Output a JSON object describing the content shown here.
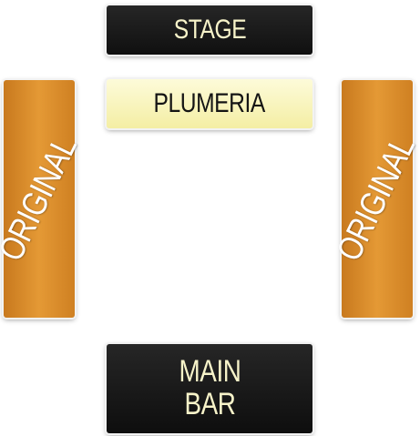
{
  "sections": {
    "stage": {
      "label": "STAGE",
      "color": "#1a1a1a"
    },
    "plumeria": {
      "label": "PLUMERIA",
      "color": "#f8f3b8"
    },
    "original_left": {
      "label": "ORIGINAL",
      "color": "#dd922e"
    },
    "original_right": {
      "label": "ORIGINAL",
      "color": "#dd922e"
    },
    "main_bar": {
      "label": "MAIN\nBAR",
      "color": "#1a1a1a"
    }
  },
  "colors": {
    "dark_text": "#f7f3c9",
    "light_text": "#141414",
    "background": "#ffffff"
  }
}
